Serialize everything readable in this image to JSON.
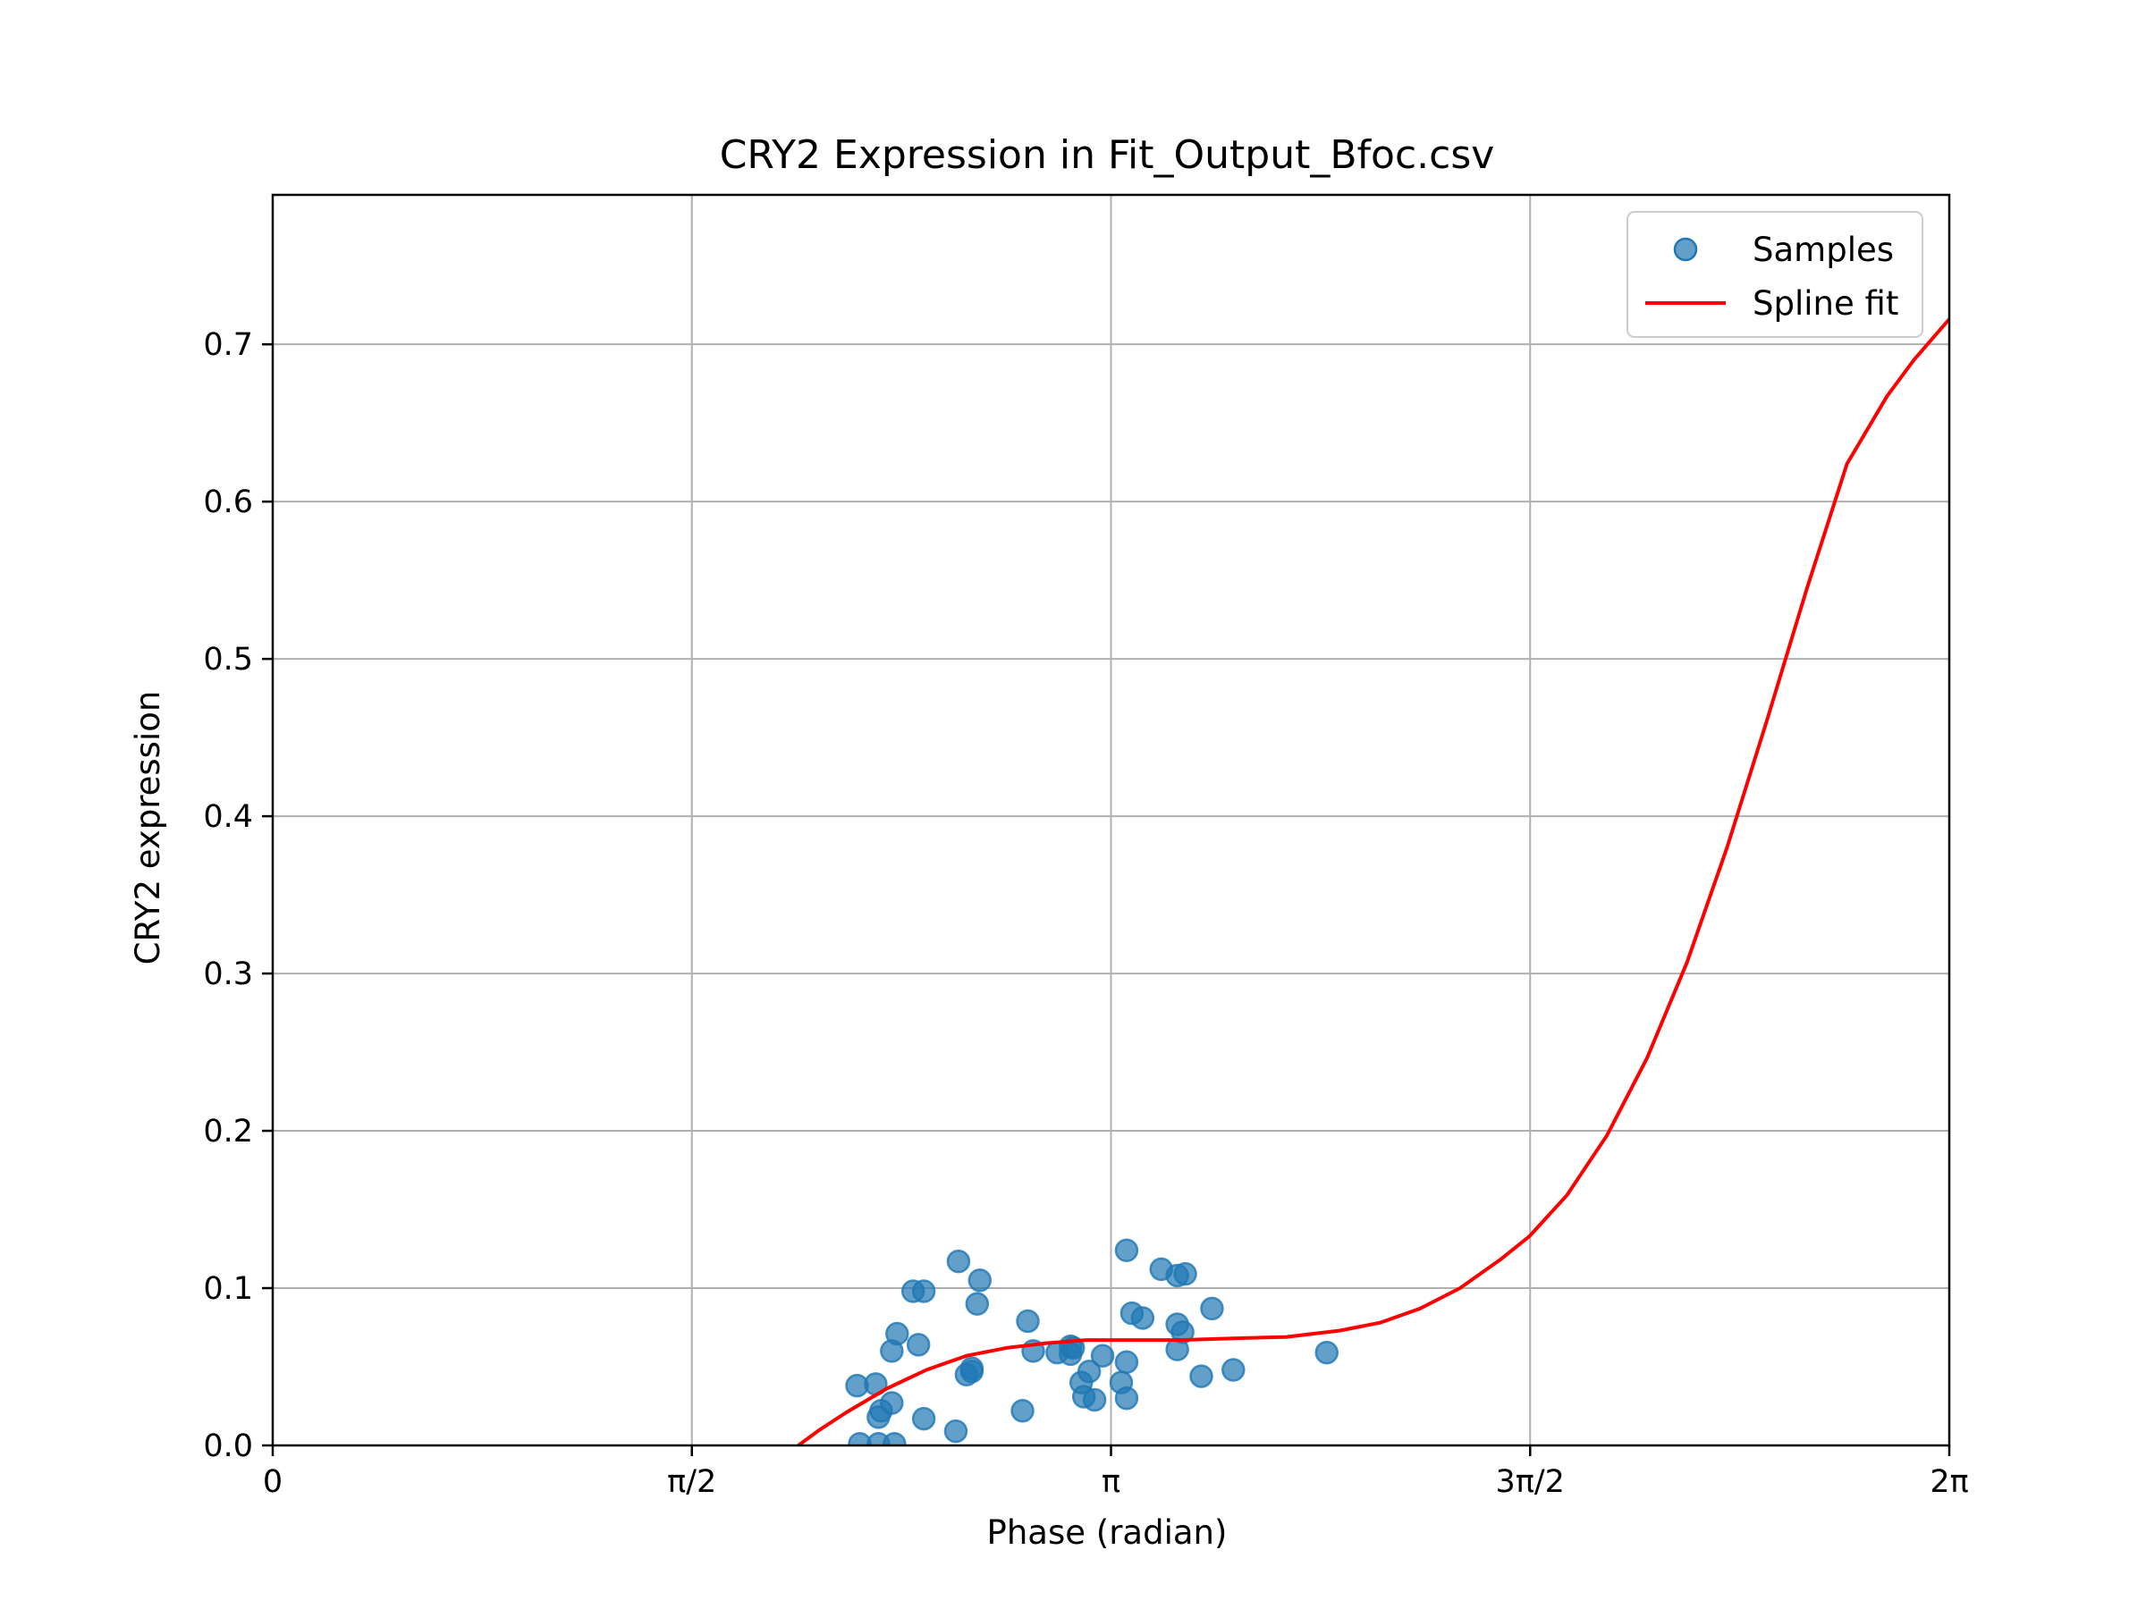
{
  "chart_data": {
    "type": "scatter",
    "title": "CRY2 Expression in Fit_Output_Bfoc.csv",
    "xlabel": "Phase (radian)",
    "ylabel": "CRY2 expression",
    "xlim": [
      0,
      6.2832
    ],
    "ylim": [
      0,
      0.795
    ],
    "grid": true,
    "legend_position": "top-right",
    "x_ticks": [
      {
        "value": 0,
        "label": "0"
      },
      {
        "value": 1.5708,
        "label": "π/2"
      },
      {
        "value": 3.1416,
        "label": "π"
      },
      {
        "value": 4.7124,
        "label": "3π/2"
      },
      {
        "value": 6.2832,
        "label": "2π"
      }
    ],
    "y_ticks": [
      {
        "value": 0.0,
        "label": "0.0"
      },
      {
        "value": 0.1,
        "label": "0.1"
      },
      {
        "value": 0.2,
        "label": "0.2"
      },
      {
        "value": 0.3,
        "label": "0.3"
      },
      {
        "value": 0.4,
        "label": "0.4"
      },
      {
        "value": 0.5,
        "label": "0.5"
      },
      {
        "value": 0.6,
        "label": "0.6"
      },
      {
        "value": 0.7,
        "label": "0.7"
      }
    ],
    "series": [
      {
        "name": "Samples",
        "kind": "scatter",
        "color": "#1f77b4",
        "points": [
          [
            2.19,
            0.038
          ],
          [
            2.26,
            0.039
          ],
          [
            2.2,
            0.001
          ],
          [
            2.27,
            0.001
          ],
          [
            2.33,
            0.001
          ],
          [
            2.27,
            0.018
          ],
          [
            2.28,
            0.022
          ],
          [
            2.32,
            0.027
          ],
          [
            2.32,
            0.06
          ],
          [
            2.34,
            0.071
          ],
          [
            2.4,
            0.098
          ],
          [
            2.44,
            0.098
          ],
          [
            2.42,
            0.064
          ],
          [
            2.44,
            0.017
          ],
          [
            2.56,
            0.009
          ],
          [
            2.57,
            0.117
          ],
          [
            2.6,
            0.045
          ],
          [
            2.62,
            0.047
          ],
          [
            2.62,
            0.049
          ],
          [
            2.64,
            0.09
          ],
          [
            2.65,
            0.105
          ],
          [
            2.81,
            0.022
          ],
          [
            2.83,
            0.079
          ],
          [
            2.85,
            0.06
          ],
          [
            2.94,
            0.059
          ],
          [
            2.99,
            0.063
          ],
          [
            2.99,
            0.058
          ],
          [
            3.0,
            0.062
          ],
          [
            3.03,
            0.04
          ],
          [
            3.04,
            0.031
          ],
          [
            3.06,
            0.047
          ],
          [
            3.08,
            0.029
          ],
          [
            3.11,
            0.057
          ],
          [
            3.18,
            0.04
          ],
          [
            3.2,
            0.124
          ],
          [
            3.2,
            0.053
          ],
          [
            3.2,
            0.03
          ],
          [
            3.22,
            0.084
          ],
          [
            3.26,
            0.081
          ],
          [
            3.33,
            0.112
          ],
          [
            3.39,
            0.108
          ],
          [
            3.42,
            0.109
          ],
          [
            3.39,
            0.077
          ],
          [
            3.41,
            0.072
          ],
          [
            3.39,
            0.061
          ],
          [
            3.48,
            0.044
          ],
          [
            3.52,
            0.087
          ],
          [
            3.6,
            0.048
          ],
          [
            3.95,
            0.059
          ]
        ]
      },
      {
        "name": "Spline fit",
        "kind": "line",
        "color": "#ff0000",
        "points": [
          [
            1.97,
            0.0
          ],
          [
            2.05,
            0.01
          ],
          [
            2.15,
            0.021
          ],
          [
            2.3,
            0.036
          ],
          [
            2.45,
            0.048
          ],
          [
            2.6,
            0.057
          ],
          [
            2.75,
            0.062
          ],
          [
            2.9,
            0.065
          ],
          [
            3.05,
            0.067
          ],
          [
            3.2,
            0.067
          ],
          [
            3.4,
            0.067
          ],
          [
            3.6,
            0.068
          ],
          [
            3.8,
            0.069
          ],
          [
            4.0,
            0.073
          ],
          [
            4.15,
            0.078
          ],
          [
            4.3,
            0.087
          ],
          [
            4.45,
            0.1
          ],
          [
            4.6,
            0.118
          ],
          [
            4.71,
            0.133
          ],
          [
            4.85,
            0.159
          ],
          [
            5.0,
            0.197
          ],
          [
            5.15,
            0.246
          ],
          [
            5.3,
            0.307
          ],
          [
            5.45,
            0.38
          ],
          [
            5.6,
            0.461
          ],
          [
            5.75,
            0.545
          ],
          [
            5.9,
            0.624
          ],
          [
            6.05,
            0.667
          ],
          [
            6.15,
            0.69
          ],
          [
            6.2832,
            0.716
          ]
        ]
      }
    ]
  }
}
